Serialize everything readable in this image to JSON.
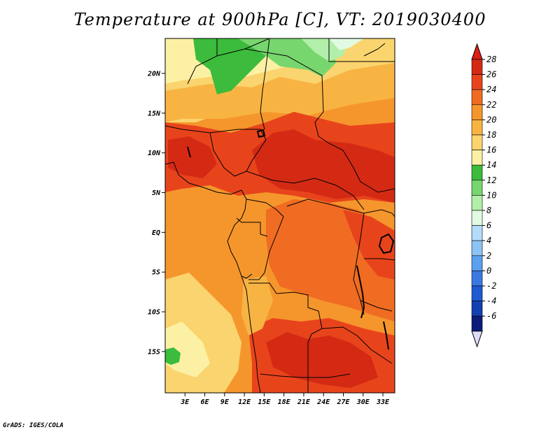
{
  "title": "Temperature at 900hPa [C], VT: 2019030400",
  "credit": "GrADS: IGES/COLA",
  "map": {
    "variable": "Temperature at 900hPa",
    "units": "C",
    "valid_time": "2019030400",
    "lon_range": [
      0,
      34.8
    ],
    "lat_range": [
      -20.2,
      24.4
    ],
    "lon_ticks": [
      {
        "value": 3,
        "label": "3E"
      },
      {
        "value": 6,
        "label": "6E"
      },
      {
        "value": 9,
        "label": "9E"
      },
      {
        "value": 12,
        "label": "12E"
      },
      {
        "value": 15,
        "label": "15E"
      },
      {
        "value": 18,
        "label": "18E"
      },
      {
        "value": 21,
        "label": "21E"
      },
      {
        "value": 24,
        "label": "24E"
      },
      {
        "value": 27,
        "label": "27E"
      },
      {
        "value": 30,
        "label": "30E"
      },
      {
        "value": 33,
        "label": "33E"
      }
    ],
    "lat_ticks": [
      {
        "value": 20,
        "label": "20N"
      },
      {
        "value": 15,
        "label": "15N"
      },
      {
        "value": 10,
        "label": "10N"
      },
      {
        "value": 5,
        "label": "5N"
      },
      {
        "value": 0,
        "label": "EQ"
      },
      {
        "value": -5,
        "label": "5S"
      },
      {
        "value": -10,
        "label": "10S"
      },
      {
        "value": -15,
        "label": "15S"
      }
    ]
  },
  "colorbar": {
    "levels": [
      {
        "label": "28",
        "color": "#d42a14"
      },
      {
        "label": "26",
        "color": "#e8441c"
      },
      {
        "label": "24",
        "color": "#f06c22"
      },
      {
        "label": "22",
        "color": "#f5962c"
      },
      {
        "label": "20",
        "color": "#f8b443"
      },
      {
        "label": "18",
        "color": "#fad46e"
      },
      {
        "label": "16",
        "color": "#fcf0a4"
      },
      {
        "label": "14",
        "color": "#3cbb3c"
      },
      {
        "label": "12",
        "color": "#78d66e"
      },
      {
        "label": "10",
        "color": "#b2efaa"
      },
      {
        "label": "8",
        "color": "#e2fae2"
      },
      {
        "label": "6",
        "color": "#b4dcfa"
      },
      {
        "label": "4",
        "color": "#8cc3f5"
      },
      {
        "label": "2",
        "color": "#5ca0f0"
      },
      {
        "label": "0",
        "color": "#3c78e0"
      },
      {
        "label": "-2",
        "color": "#1e5ad0"
      },
      {
        "label": "-4",
        "color": "#1240b0"
      },
      {
        "label": "-6",
        "color": "#0c1c78"
      }
    ],
    "top_color": "#dc1e14",
    "bottom_color": "#dcdcf8"
  }
}
